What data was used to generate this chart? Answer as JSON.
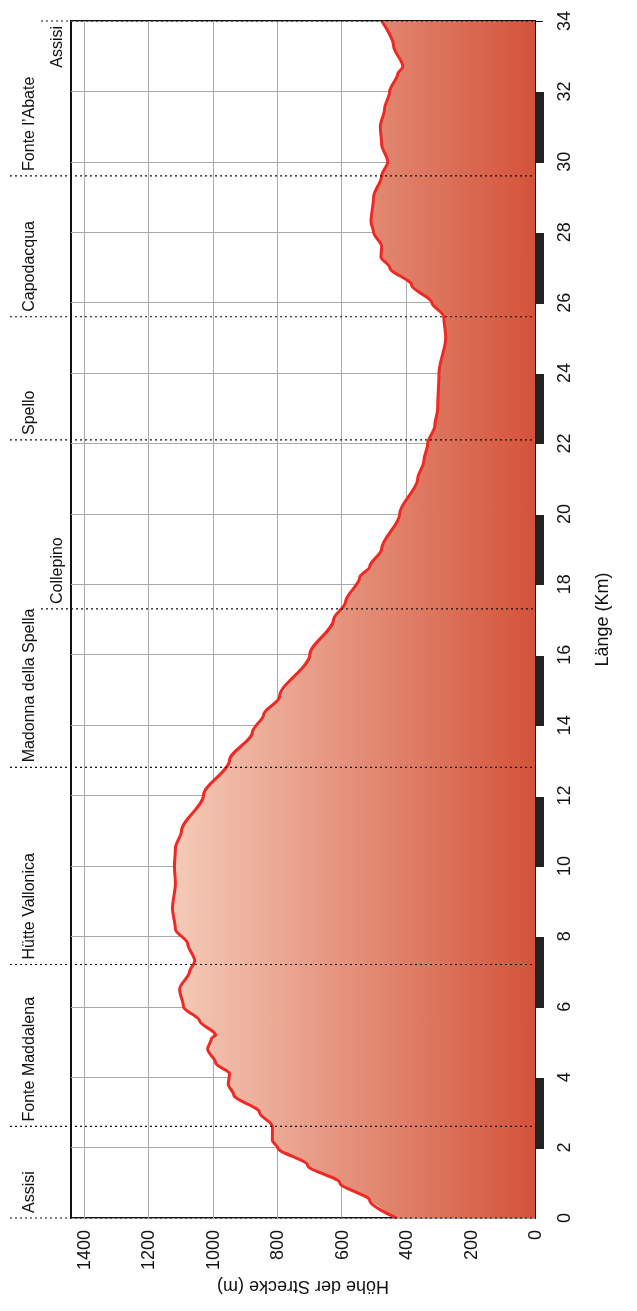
{
  "chart_data": {
    "type": "area",
    "orientation": "horizontal",
    "xlabel": "Höhe der Strecke (m)",
    "ylabel": "Länge (Km)",
    "x": [
      0,
      0.5,
      1,
      1.5,
      2,
      2.2,
      2.6,
      3,
      3.5,
      3.8,
      4.1,
      4.4,
      4.8,
      5.1,
      5.2,
      5.6,
      6,
      6.5,
      7,
      7.3,
      7.8,
      8.2,
      8.8,
      9.5,
      10,
      10.5,
      11,
      12,
      13,
      13.8,
      14.3,
      14.8,
      16,
      17,
      17.5,
      18.2,
      18.5,
      19,
      20,
      21,
      21.5,
      22,
      22.5,
      23,
      24,
      25,
      25.6,
      26,
      26.5,
      27,
      27.3,
      27.6,
      28,
      28.3,
      29,
      29.6,
      30,
      30.5,
      31,
      31.5,
      32,
      32.5,
      32.7,
      33.3,
      34
    ],
    "series": [
      {
        "color": "#ee2a24",
        "values": [
          430,
          513,
          606,
          706,
          799,
          815,
          815,
          855,
          935,
          952,
          948,
          991,
          1016,
          1004,
          991,
          1041,
          1091,
          1103,
          1072,
          1056,
          1078,
          1116,
          1125,
          1116,
          1119,
          1116,
          1097,
          1029,
          948,
          877,
          842,
          793,
          699,
          625,
          588,
          544,
          513,
          476,
          420,
          364,
          345,
          333,
          311,
          302,
          298,
          277,
          283,
          320,
          383,
          451,
          478,
          476,
          501,
          509,
          501,
          476,
          457,
          476,
          480,
          467,
          451,
          426,
          410,
          439,
          476
        ]
      }
    ],
    "xlim": [
      1440,
      0
    ],
    "xticks": [
      1400,
      1200,
      1000,
      800,
      600,
      400,
      200,
      0
    ],
    "ylim": [
      0,
      34
    ],
    "yticks": [
      0,
      2,
      4,
      6,
      8,
      10,
      12,
      14,
      16,
      18,
      20,
      22,
      24,
      26,
      28,
      30,
      32,
      34
    ],
    "grid": true,
    "marker": "none",
    "ref_lines": [
      {
        "axis": "y",
        "value": 0,
        "label": "Assisi",
        "line_style": "dotted"
      },
      {
        "axis": "y",
        "value": 2.6,
        "label": "Fonte Maddalena",
        "line_style": "dotted"
      },
      {
        "axis": "y",
        "value": 7.2,
        "label": "Hütte Vallonica",
        "line_style": "dotted"
      },
      {
        "axis": "y",
        "value": 12.8,
        "label": "Madonna della Spella",
        "line_style": "dotted"
      },
      {
        "axis": "y",
        "value": 17.3,
        "label": "Collepino",
        "line_style": "dotted"
      },
      {
        "axis": "y",
        "value": 22.1,
        "label": "Spello",
        "line_style": "dotted"
      },
      {
        "axis": "y",
        "value": 25.6,
        "label": "Capodacqua",
        "line_style": "dotted"
      },
      {
        "axis": "y",
        "value": 29.6,
        "label": "Fonte l’Abate",
        "line_style": "dotted"
      },
      {
        "axis": "y",
        "value": 34,
        "label": "Assisi",
        "line_style": "dotted"
      }
    ]
  }
}
